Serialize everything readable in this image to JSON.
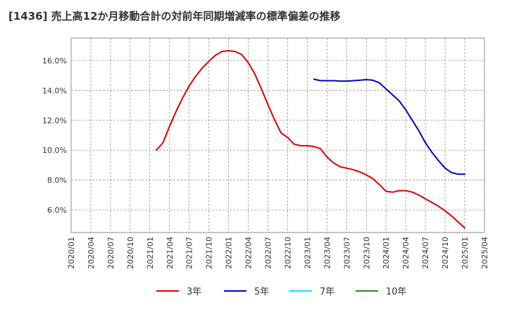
{
  "chart_data": {
    "type": "line",
    "title": "[1436]  売上高12か月移動合計の対前年同期増減率の標準偏差の推移",
    "xlabel": "",
    "ylabel": "",
    "ylim": [
      4.5,
      17.5
    ],
    "y_ticks": [
      6.0,
      8.0,
      10.0,
      12.0,
      14.0,
      16.0
    ],
    "y_tick_labels": [
      "6.0%",
      "8.0%",
      "10.0%",
      "12.0%",
      "14.0%",
      "16.0%"
    ],
    "x_tick_labels": [
      "2020/01",
      "2020/04",
      "2020/07",
      "2020/10",
      "2021/01",
      "2021/04",
      "2021/07",
      "2021/10",
      "2022/01",
      "2022/04",
      "2022/07",
      "2022/10",
      "2023/01",
      "2023/04",
      "2023/07",
      "2023/10",
      "2024/01",
      "2024/04",
      "2024/07",
      "2024/10",
      "2025/01",
      "2025/04"
    ],
    "grid": true,
    "legend_position": "bottom",
    "series": [
      {
        "name": "3年",
        "color": "#e00000",
        "x": [
          "2021/02",
          "2021/03",
          "2021/04",
          "2021/05",
          "2021/06",
          "2021/07",
          "2021/08",
          "2021/09",
          "2021/10",
          "2021/11",
          "2021/12",
          "2022/01",
          "2022/02",
          "2022/03",
          "2022/04",
          "2022/05",
          "2022/06",
          "2022/07",
          "2022/08",
          "2022/09",
          "2022/10",
          "2022/11",
          "2022/12",
          "2023/01",
          "2023/02",
          "2023/03",
          "2023/04",
          "2023/05",
          "2023/06",
          "2023/07",
          "2023/08",
          "2023/09",
          "2023/10",
          "2023/11",
          "2023/12",
          "2024/01",
          "2024/02",
          "2024/03",
          "2024/04",
          "2024/05",
          "2024/06",
          "2024/07",
          "2024/08",
          "2024/09",
          "2024/10",
          "2024/11",
          "2024/12",
          "2025/01"
        ],
        "values": [
          10.0,
          10.5,
          11.6,
          12.6,
          13.5,
          14.3,
          14.95,
          15.5,
          15.95,
          16.35,
          16.6,
          16.65,
          16.6,
          16.4,
          15.85,
          15.1,
          14.1,
          13.05,
          12.05,
          11.15,
          10.85,
          10.4,
          10.3,
          10.3,
          10.25,
          10.1,
          9.55,
          9.15,
          8.9,
          8.8,
          8.7,
          8.55,
          8.35,
          8.1,
          7.7,
          7.25,
          7.2,
          7.3,
          7.3,
          7.2,
          7.0,
          6.75,
          6.5,
          6.25,
          5.95,
          5.6,
          5.2,
          4.8
        ]
      },
      {
        "name": "5年",
        "color": "#0000cc",
        "x": [
          "2023/02",
          "2023/03",
          "2023/04",
          "2023/05",
          "2023/06",
          "2023/07",
          "2023/08",
          "2023/09",
          "2023/10",
          "2023/11",
          "2023/12",
          "2024/01",
          "2024/02",
          "2024/03",
          "2024/04",
          "2024/05",
          "2024/06",
          "2024/07",
          "2024/08",
          "2024/09",
          "2024/10",
          "2024/11",
          "2024/12",
          "2025/01"
        ],
        "values": [
          14.75,
          14.65,
          14.65,
          14.65,
          14.62,
          14.62,
          14.65,
          14.68,
          14.72,
          14.68,
          14.5,
          14.1,
          13.7,
          13.3,
          12.7,
          12.0,
          11.3,
          10.5,
          9.85,
          9.3,
          8.8,
          8.5,
          8.4,
          8.4
        ]
      },
      {
        "name": "7年",
        "color": "#00e5ff",
        "x": [],
        "values": []
      },
      {
        "name": "10年",
        "color": "#228b22",
        "x": [],
        "values": []
      }
    ]
  }
}
